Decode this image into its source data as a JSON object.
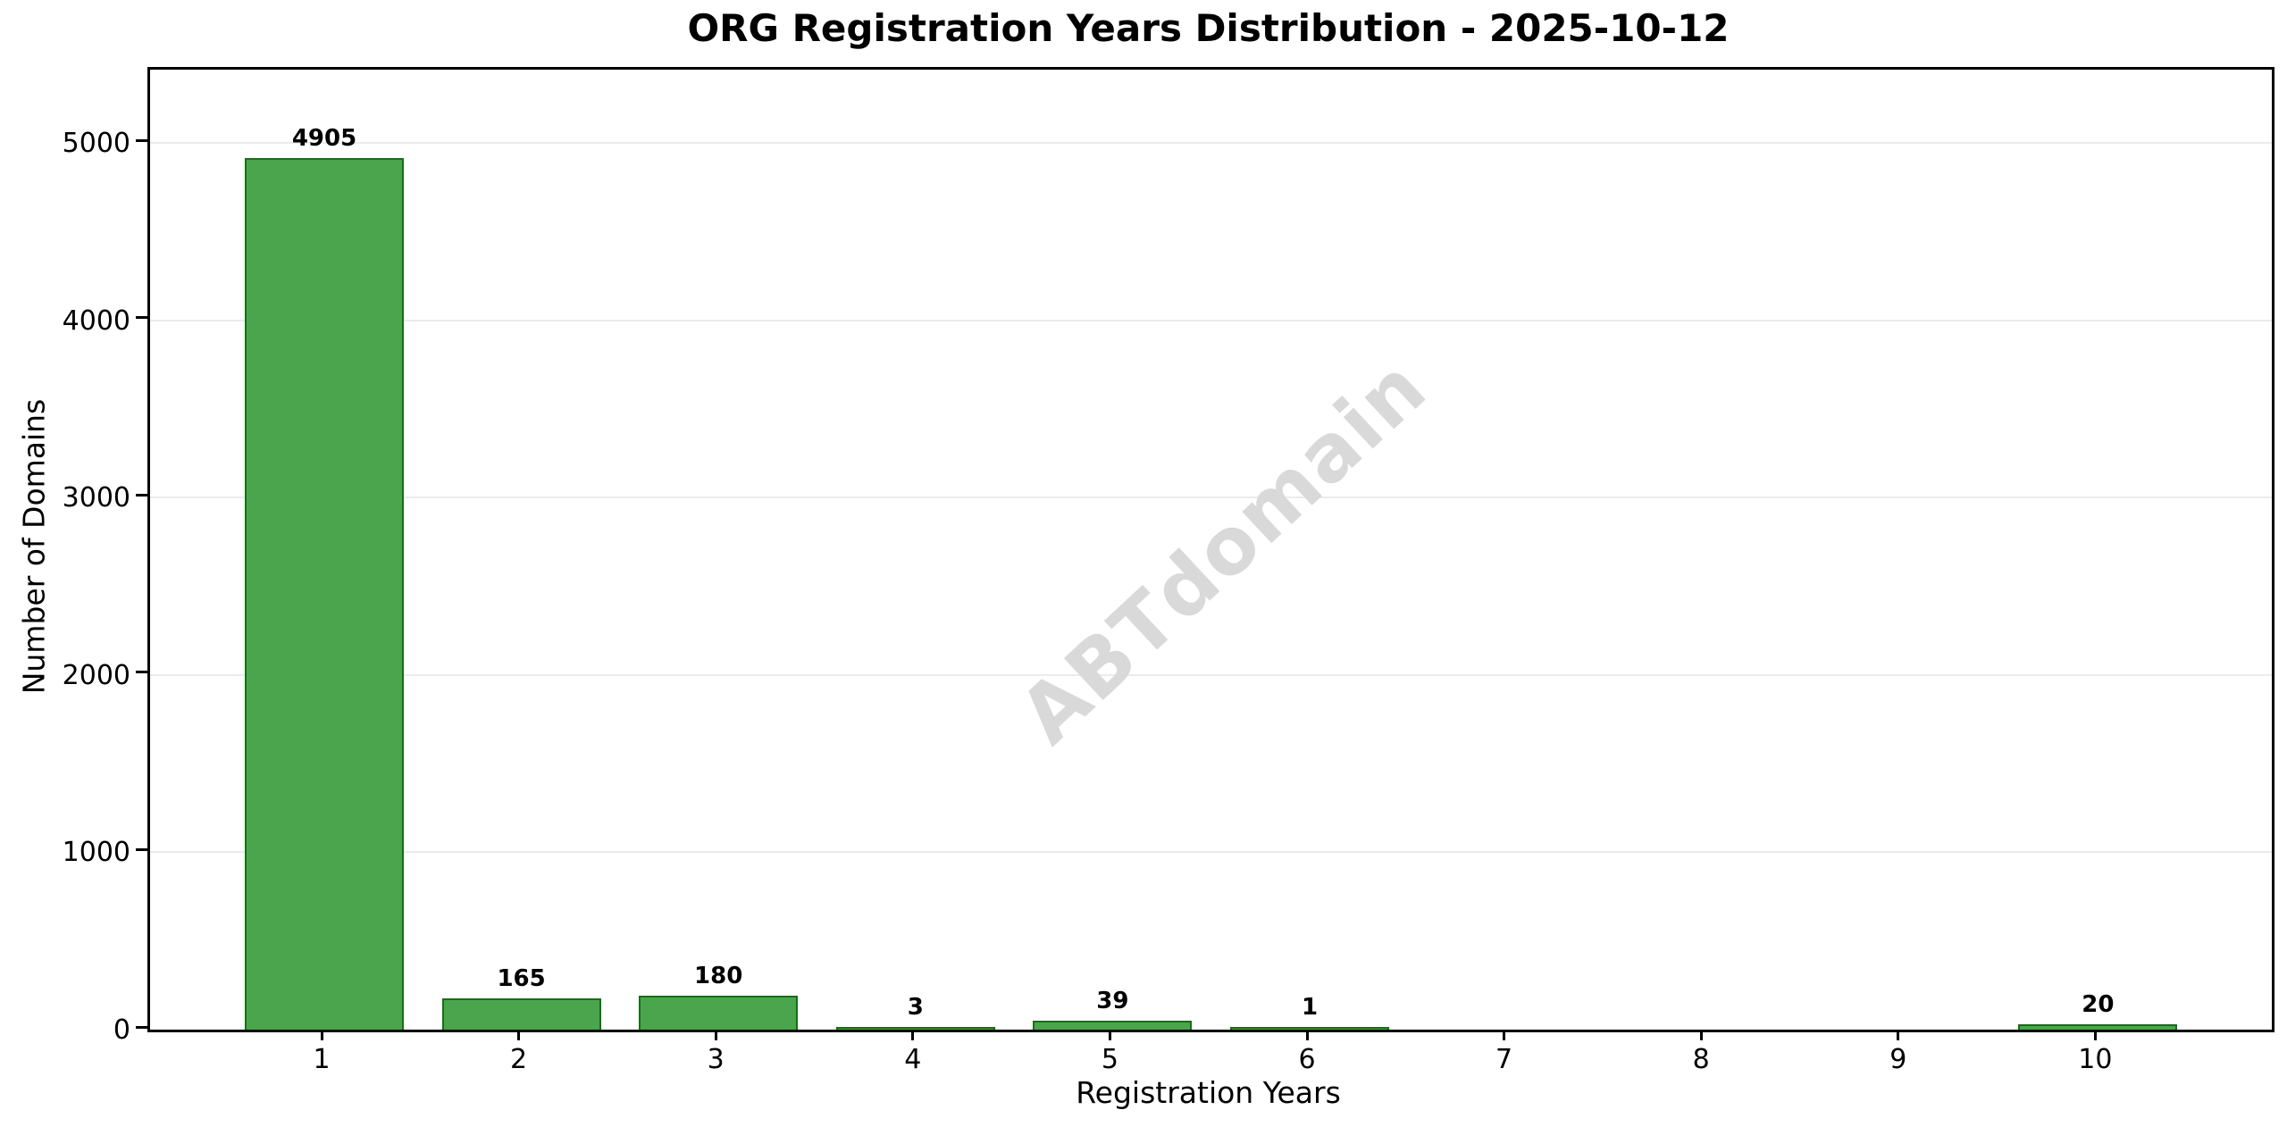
{
  "chart_data": {
    "type": "bar",
    "title": "ORG Registration Years Distribution - 2025-10-12",
    "xlabel": "Registration Years",
    "ylabel": "Number of Domains",
    "categories": [
      "1",
      "2",
      "3",
      "4",
      "5",
      "6",
      "7",
      "8",
      "9",
      "10"
    ],
    "values": [
      4905,
      165,
      180,
      3,
      39,
      1,
      0,
      0,
      0,
      20
    ],
    "bar_labels": [
      "4905",
      "165",
      "180",
      "3",
      "39",
      "1",
      "",
      "",
      "",
      "20"
    ],
    "yticks": [
      0,
      1000,
      2000,
      3000,
      4000,
      5000
    ],
    "ylim": [
      0,
      5415
    ],
    "grid": "horizontal-only",
    "legend_position": "none",
    "watermark": "ABTdomain",
    "colors": {
      "bar_fill": "#4BA54C",
      "bar_edge": "#156F15",
      "gridline": "#EBEBEB",
      "watermark": "#D9D9D9",
      "axis": "#000000",
      "background": "#FFFFFF",
      "text": "#000000"
    }
  }
}
